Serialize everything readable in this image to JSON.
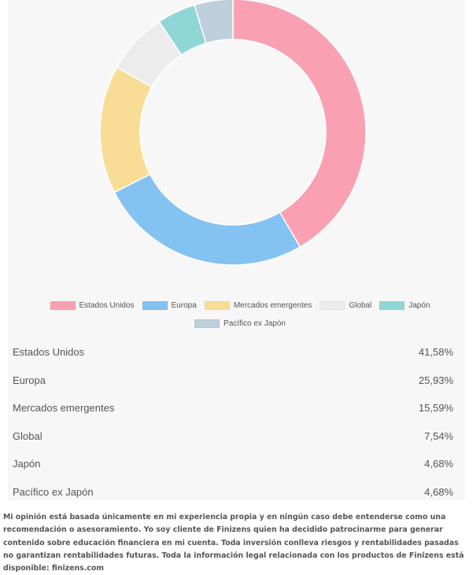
{
  "chart_data": {
    "type": "pie",
    "variant": "donut",
    "categories": [
      "Estados Unidos",
      "Europa",
      "Mercados emergentes",
      "Global",
      "Japón",
      "Pacífico ex Japón"
    ],
    "values": [
      41.58,
      25.93,
      15.59,
      7.54,
      4.68,
      4.68
    ],
    "colors": [
      "#f9a1b3",
      "#84c2f1",
      "#f9dd97",
      "#ececec",
      "#90d6d7",
      "#bdd0db"
    ],
    "legend_placement": "bottom",
    "rows": [
      {
        "label": "Estados Unidos",
        "value": "41,58%"
      },
      {
        "label": "Europa",
        "value": "25,93%"
      },
      {
        "label": "Mercados emergentes",
        "value": "15,59%"
      },
      {
        "label": "Global",
        "value": "7,54%"
      },
      {
        "label": "Japón",
        "value": "4,68%"
      },
      {
        "label": "Pacífico ex Japón",
        "value": "4,68%"
      }
    ]
  },
  "disclaimer": "Mi opinión está basada únicamente en mi experiencia propia y en ningún caso debe entenderse como una recomendación o asesoramiento. Yo soy cliente de Finizens quien ha decidido patrocinarme para generar contenido sobre educación financiera en mi cuenta. Toda inversión conlleva riesgos y rentabilidades pasadas no garantizan rentabilidades futuras. Toda la información legal relacionada con los productos de Finizens está disponible: finizens.com"
}
